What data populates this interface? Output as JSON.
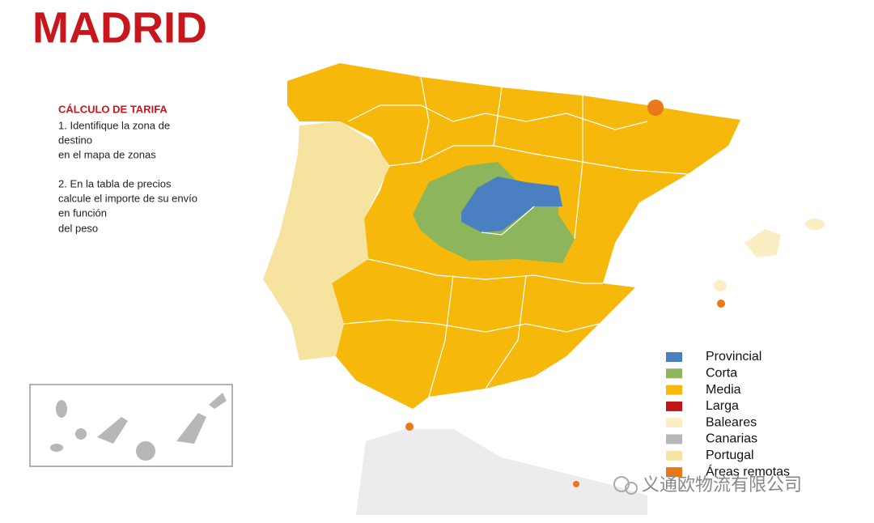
{
  "header": {
    "title": "MADRID"
  },
  "instructions": {
    "heading": "CÁLCULO DE TARIFA",
    "lines": [
      "1. Identifique la zona de",
      "destino",
      "en el mapa de zonas",
      "2. En la tabla de precios",
      "calcule el importe de su envío",
      "en función",
      "del peso"
    ]
  },
  "legend": [
    {
      "label": "Provincial",
      "color": "#4a7fc1"
    },
    {
      "label": "Corta",
      "color": "#8db55b"
    },
    {
      "label": "Media",
      "color": "#f5b80b"
    },
    {
      "label": "Larga",
      "color": "#c0141b"
    },
    {
      "label": "Baleares",
      "color": "#fbeec4"
    },
    {
      "label": "Canarias",
      "color": "#b7b7b7"
    },
    {
      "label": "Portugal",
      "color": "#f7e3a0"
    },
    {
      "label": "Áreas remotas",
      "color": "#e87818"
    }
  ],
  "watermark": "义通欧物流有限公司"
}
